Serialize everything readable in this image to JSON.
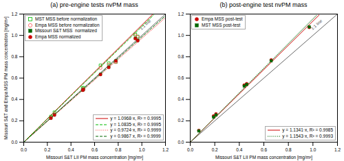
{
  "chart_data": [
    {
      "type": "scatter",
      "title": "(a) pre-engine tests nvPM mass",
      "x_label": "Missouri S&T LII PM mass concentration [mg/m³]",
      "y_label": "Missouri S&T and Empa MSS PM mass concentration [mg/m³]",
      "xlim": [
        0.0,
        1.2
      ],
      "ylim": [
        0.0,
        1.2
      ],
      "xticks": [
        {
          "value": 0.0,
          "label": "0.0"
        },
        0.2,
        0.4,
        0.6,
        0.8,
        {
          "value": 1.0,
          "label": "1.0"
        },
        1.2
      ],
      "yticks": [
        {
          "value": 0.0,
          "label": "0.0"
        },
        0.2,
        0.4,
        0.6,
        0.8,
        {
          "value": 1.0,
          "label": "1.0"
        },
        1.2
      ],
      "grid": false,
      "legend": "upper left",
      "reference_line": {
        "label": "1:1 line",
        "color": "#555555",
        "x": [
          0.0,
          1.2
        ],
        "values": [
          0.0,
          1.2
        ],
        "label_x": 1.03,
        "label_y": 1.1
      },
      "series": [
        {
          "name": "y = 1.0968·x, R² = 0.9995",
          "type": "line",
          "color": "#cc0000",
          "line_style": "solid",
          "x": [
            0.0,
            1.09
          ],
          "values": [
            0.0,
            1.195512
          ]
        },
        {
          "name": "y = 1.0835·x, R² = 0.9995",
          "type": "line",
          "color": "#00bb00",
          "line_style": "dashed",
          "x": [
            0.0,
            1.1
          ],
          "values": [
            0.0,
            1.19185
          ]
        },
        {
          "name": "y = 0.9724·x, R² = 0.9999",
          "type": "line",
          "color": "#ff5555",
          "line_style": "dotted",
          "x": [
            0.0,
            1.2
          ],
          "values": [
            0.0,
            1.16688
          ]
        },
        {
          "name": "y = 0.9867 x, R² = 0.9999",
          "type": "line",
          "color": "#006600",
          "line_style": "dashed",
          "x": [
            0.0,
            1.2
          ],
          "values": [
            0.0,
            1.18404
          ]
        },
        {
          "name": "MST MSS before normalization",
          "type": "scatter",
          "color": "#00bb00",
          "marker": "open-square",
          "x": [
            0.23,
            0.26,
            0.5,
            0.505,
            0.65,
            0.72,
            0.78,
            0.945,
            0.965
          ],
          "values": [
            0.24,
            0.28,
            0.505,
            0.51,
            0.72,
            0.74,
            0.75,
            1.01,
            0.99
          ]
        },
        {
          "name": "Empa MSS before normalization",
          "type": "scatter",
          "color": "#ff5555",
          "marker": "open-circle",
          "x": [
            0.23,
            0.26,
            0.5,
            0.505,
            0.65,
            0.72,
            0.78,
            0.945,
            0.965
          ],
          "values": [
            0.23,
            0.265,
            0.495,
            0.5,
            0.695,
            0.725,
            0.75,
            1.0,
            0.985
          ]
        },
        {
          "name": "Missouri S&T MSS  normalized",
          "type": "scatter",
          "color": "#006600",
          "marker": "square",
          "x": [
            0.23,
            0.26,
            0.5,
            0.505,
            0.65,
            0.72,
            0.78,
            0.945,
            0.965
          ],
          "values": [
            0.226,
            0.256,
            0.488,
            0.493,
            0.636,
            0.703,
            0.763,
            0.973,
            0.953
          ]
        },
        {
          "name": "Empa MSS normalized",
          "type": "scatter",
          "color": "#cc0000",
          "marker": "circle",
          "x": [
            0.23,
            0.26,
            0.5,
            0.505,
            0.65,
            0.72,
            0.78,
            0.945,
            0.965
          ],
          "values": [
            0.224,
            0.253,
            0.486,
            0.491,
            0.633,
            0.7,
            0.76,
            0.97,
            0.95
          ]
        }
      ]
    },
    {
      "type": "scatter",
      "title": "(b) post-engine test nvPM mass",
      "x_label": "Missouri S&T LII PM mass concentration [mg/m³]",
      "xlim": [
        0.0,
        1.2
      ],
      "ylim": [
        0.0,
        1.2
      ],
      "xticks": [
        {
          "value": 0.0,
          "label": "0.0"
        },
        0.2,
        0.4,
        0.6,
        0.8,
        {
          "value": 1.0,
          "label": "1.0"
        },
        1.2
      ],
      "yticks": [
        {
          "value": 0.0,
          "label": "0.0"
        },
        0.2,
        0.4,
        0.6,
        0.8,
        {
          "value": 1.0,
          "label": "1.0"
        },
        1.2
      ],
      "grid": false,
      "legend": "upper left",
      "reference_line": {
        "label": "1:1 line",
        "color": "#555555",
        "x": [
          0.0,
          1.2
        ],
        "values": [
          0.0,
          1.2
        ],
        "label_x": 1.03,
        "label_y": 1.1
      },
      "series": [
        {
          "name": "y = 1.1341·x, R² = 0.9985",
          "type": "line",
          "color": "#cc0000",
          "line_style": "solid",
          "x": [
            0.0,
            1.05
          ],
          "values": [
            0.0,
            1.190805
          ]
        },
        {
          "name": "y = 1.1543·x, R² = 0.9993",
          "type": "line",
          "color": "#006600",
          "line_style": "dotted",
          "x": [
            0.0,
            1.03
          ],
          "values": [
            0.0,
            1.188929
          ]
        },
        {
          "name": "Empa MSS post-test",
          "type": "scatter",
          "color": "#cc0000",
          "marker": "circle",
          "x": [
            0.07,
            0.19,
            0.21,
            0.44,
            0.46,
            0.66,
            0.97
          ],
          "values": [
            0.11,
            0.245,
            0.265,
            0.535,
            0.548,
            0.77,
            1.075
          ]
        },
        {
          "name": "MST MSS post-test",
          "type": "scatter",
          "color": "#006600",
          "marker": "square",
          "x": [
            0.07,
            0.19,
            0.21,
            0.44,
            0.46,
            0.66,
            0.97
          ],
          "values": [
            0.105,
            0.235,
            0.255,
            0.525,
            0.54,
            0.762,
            1.08
          ]
        }
      ]
    }
  ]
}
